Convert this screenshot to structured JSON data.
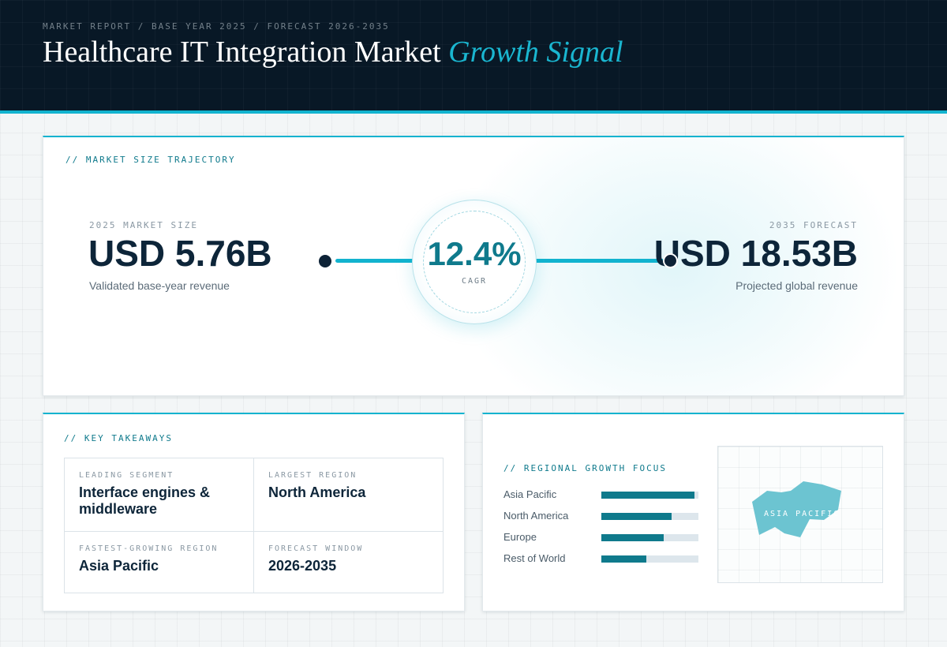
{
  "header": {
    "kicker": "MARKET REPORT / BASE YEAR 2025 / FORECAST 2026-2035",
    "title_main": "Healthcare IT Integration Market ",
    "title_accent": "Growth Signal"
  },
  "trajectory": {
    "label": "// MARKET SIZE TRAJECTORY",
    "start": {
      "label": "2025 MARKET SIZE",
      "value": "USD 5.76B",
      "sub": "Validated base-year revenue"
    },
    "end": {
      "label": "2035 FORECAST",
      "value": "USD 18.53B",
      "sub": "Projected global revenue"
    },
    "cagr": {
      "value": "12.4%",
      "label": "CAGR"
    }
  },
  "takeaways": {
    "label": "// KEY TAKEAWAYS",
    "items": [
      {
        "key": "LEADING SEGMENT",
        "value": "Interface engines & middleware"
      },
      {
        "key": "LARGEST REGION",
        "value": "North America"
      },
      {
        "key": "FASTEST-GROWING REGION",
        "value": "Asia Pacific"
      },
      {
        "key": "FORECAST WINDOW",
        "value": "2026-2035"
      }
    ]
  },
  "regional": {
    "label": "// REGIONAL GROWTH FOCUS",
    "bars": [
      {
        "name": "Asia Pacific",
        "level": 0.96
      },
      {
        "name": "North America",
        "level": 0.72
      },
      {
        "name": "Europe",
        "level": 0.64
      },
      {
        "name": "Rest of World",
        "level": 0.46
      }
    ],
    "map_label": "ASIA PACIFIC",
    "accent_color": "#0f7a8c",
    "map_color": "#6cc4d1"
  }
}
